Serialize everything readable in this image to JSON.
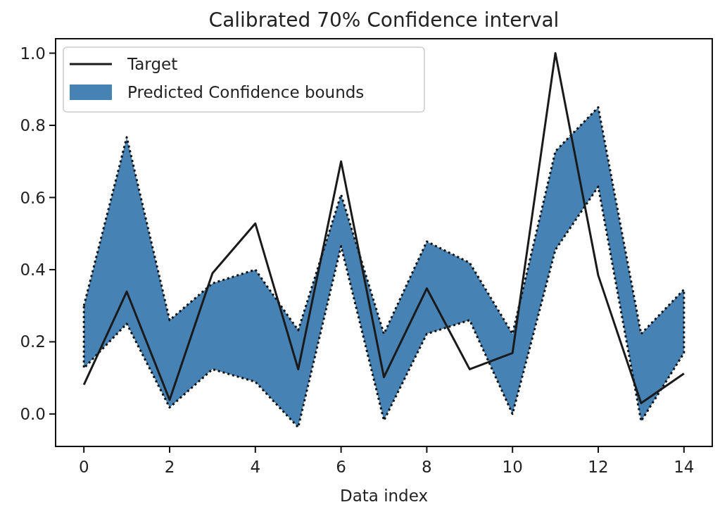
{
  "chart_data": {
    "type": "line",
    "title": "Calibrated 70% Confidence interval",
    "xlabel": "Data index",
    "x": [
      0,
      1,
      2,
      3,
      4,
      5,
      6,
      7,
      8,
      9,
      10,
      11,
      12,
      13,
      14
    ],
    "series": [
      {
        "name": "Target",
        "color": "#1a1a1a",
        "values": [
          0.081,
          0.339,
          0.039,
          0.39,
          0.528,
          0.124,
          0.7,
          0.102,
          0.348,
          0.124,
          0.169,
          1.0,
          0.384,
          0.03,
          0.112
        ]
      },
      {
        "name": "Predicted Confidence bounds",
        "color": "#4682b4",
        "line_style": "dotted",
        "values": [
          null,
          null,
          null,
          null,
          null,
          null,
          null,
          null,
          null,
          null,
          null,
          null,
          null,
          null,
          null
        ],
        "lower": [
          0.127,
          0.25,
          0.018,
          0.124,
          0.089,
          -0.037,
          0.465,
          -0.018,
          0.222,
          0.26,
          0.0,
          0.455,
          0.63,
          -0.02,
          0.169
        ],
        "upper": [
          0.3,
          0.767,
          0.26,
          0.362,
          0.4,
          0.232,
          0.608,
          0.222,
          0.478,
          0.419,
          0.222,
          0.728,
          0.85,
          0.222,
          0.345
        ]
      }
    ],
    "xlim": [
      -0.66,
      14.66
    ],
    "xticks": [
      0,
      2,
      4,
      6,
      8,
      10,
      12,
      14
    ],
    "ylim": [
      -0.09,
      1.04
    ],
    "yticks": [
      {
        "value": 0.0,
        "label": "0.0"
      },
      {
        "value": 0.2,
        "label": "0.2"
      },
      {
        "value": 0.4,
        "label": "0.4"
      },
      {
        "value": 0.6,
        "label": "0.6"
      },
      {
        "value": 0.8,
        "label": "0.8"
      },
      {
        "value": 1.0,
        "label": "1.0"
      }
    ],
    "legend": "top left",
    "grid": false
  }
}
